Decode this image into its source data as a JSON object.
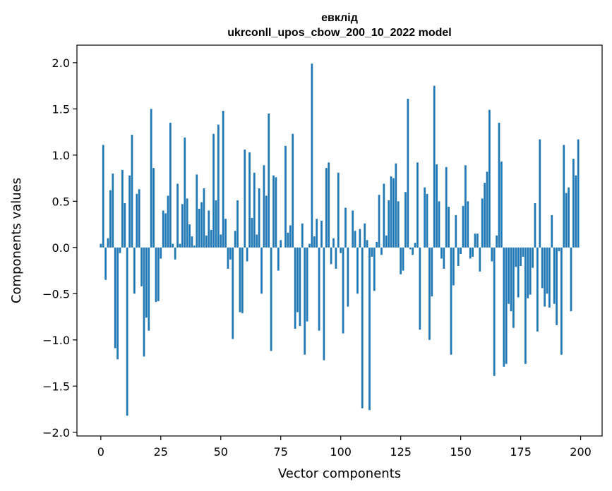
{
  "chart_data": {
    "type": "bar",
    "title": "евклід",
    "subtitle": "ukrconll_upos_cbow_200_10_2022 model",
    "xlabel": "Vector components",
    "ylabel": "Components values",
    "xlim": [
      -9.95,
      208.95
    ],
    "ylim": [
      -2.04,
      2.19
    ],
    "xticks": [
      0,
      25,
      50,
      75,
      100,
      125,
      150,
      175,
      200
    ],
    "yticks": [
      -2.0,
      -1.5,
      -1.0,
      -0.5,
      0.0,
      0.5,
      1.0,
      1.5,
      2.0
    ],
    "ytick_labels": [
      "−2.0",
      "−1.5",
      "−1.0",
      "−0.5",
      "0.0",
      "0.5",
      "1.0",
      "1.5",
      "2.0"
    ],
    "bar_color": "#1f77b4",
    "grid": false,
    "legend": "none",
    "x": [
      0,
      1,
      2,
      3,
      4,
      5,
      6,
      7,
      8,
      9,
      10,
      11,
      12,
      13,
      14,
      15,
      16,
      17,
      18,
      19,
      20,
      21,
      22,
      23,
      24,
      25,
      26,
      27,
      28,
      29,
      30,
      31,
      32,
      33,
      34,
      35,
      36,
      37,
      38,
      39,
      40,
      41,
      42,
      43,
      44,
      45,
      46,
      47,
      48,
      49,
      50,
      51,
      52,
      53,
      54,
      55,
      56,
      57,
      58,
      59,
      60,
      61,
      62,
      63,
      64,
      65,
      66,
      67,
      68,
      69,
      70,
      71,
      72,
      73,
      74,
      75,
      76,
      77,
      78,
      79,
      80,
      81,
      82,
      83,
      84,
      85,
      86,
      87,
      88,
      89,
      90,
      91,
      92,
      93,
      94,
      95,
      96,
      97,
      98,
      99,
      100,
      101,
      102,
      103,
      104,
      105,
      106,
      107,
      108,
      109,
      110,
      111,
      112,
      113,
      114,
      115,
      116,
      117,
      118,
      119,
      120,
      121,
      122,
      123,
      124,
      125,
      126,
      127,
      128,
      129,
      130,
      131,
      132,
      133,
      134,
      135,
      136,
      137,
      138,
      139,
      140,
      141,
      142,
      143,
      144,
      145,
      146,
      147,
      148,
      149,
      150,
      151,
      152,
      153,
      154,
      155,
      156,
      157,
      158,
      159,
      160,
      161,
      162,
      163,
      164,
      165,
      166,
      167,
      168,
      169,
      170,
      171,
      172,
      173,
      174,
      175,
      176,
      177,
      178,
      179,
      180,
      181,
      182,
      183,
      184,
      185,
      186,
      187,
      188,
      189,
      190,
      191,
      192,
      193,
      194,
      195,
      196,
      197,
      198,
      199
    ],
    "values": [
      0.04,
      1.11,
      -0.35,
      0.1,
      0.62,
      0.8,
      -1.09,
      -1.21,
      -0.06,
      0.84,
      0.48,
      -1.82,
      0.78,
      1.22,
      -0.5,
      0.58,
      0.63,
      -0.42,
      -1.18,
      -0.76,
      -0.9,
      1.5,
      0.86,
      -0.59,
      -0.58,
      -0.12,
      0.4,
      0.37,
      0.56,
      1.35,
      0.04,
      -0.13,
      0.69,
      0.04,
      0.47,
      1.19,
      0.53,
      0.25,
      0.12,
      0.02,
      0.79,
      0.42,
      0.49,
      0.64,
      0.13,
      0.4,
      0.19,
      1.23,
      0.51,
      1.33,
      0.14,
      1.48,
      0.31,
      -0.23,
      -0.13,
      -0.99,
      0.18,
      0.51,
      -0.7,
      -0.71,
      1.06,
      -0.15,
      1.03,
      0.32,
      0.81,
      0.14,
      0.64,
      -0.5,
      0.89,
      0.56,
      1.45,
      -1.12,
      0.78,
      0.76,
      -0.25,
      0.08,
      0.0,
      1.1,
      0.16,
      0.24,
      1.23,
      -0.88,
      -0.7,
      -0.85,
      0.26,
      -1.16,
      -0.8,
      0.04,
      1.99,
      0.12,
      0.31,
      -0.9,
      0.29,
      -1.22,
      0.86,
      0.92,
      -0.18,
      0.1,
      -0.23,
      0.81,
      -0.06,
      -0.93,
      0.43,
      -0.64,
      0.0,
      0.4,
      0.18,
      -0.5,
      0.2,
      -1.74,
      0.26,
      0.08,
      -1.76,
      -0.1,
      -0.47,
      0.06,
      0.57,
      -0.08,
      0.69,
      0.13,
      0.51,
      0.77,
      0.75,
      0.91,
      0.5,
      -0.29,
      -0.25,
      0.6,
      1.61,
      -0.02,
      -0.08,
      0.05,
      0.92,
      -0.89,
      0.0,
      0.65,
      0.58,
      -1.0,
      -0.53,
      1.75,
      0.9,
      0.5,
      -0.12,
      -0.23,
      0.87,
      0.44,
      -1.16,
      -0.41,
      0.35,
      -0.2,
      -0.07,
      0.45,
      0.89,
      0.5,
      -0.12,
      -0.1,
      0.15,
      0.15,
      -0.26,
      0.53,
      0.7,
      0.82,
      1.49,
      -0.15,
      -1.39,
      0.13,
      1.35,
      0.93,
      -1.29,
      -1.26,
      -0.61,
      -0.69,
      -0.87,
      -0.21,
      -0.54,
      -0.2,
      -0.1,
      -1.26,
      -0.55,
      -0.51,
      -0.22,
      0.48,
      -0.91,
      1.17,
      -0.44,
      -0.64,
      -0.5,
      -0.65,
      0.35,
      -0.61,
      -0.84,
      -0.04,
      -1.16,
      1.11,
      0.59,
      0.65,
      -0.69,
      0.96,
      0.78,
      1.17
    ]
  }
}
